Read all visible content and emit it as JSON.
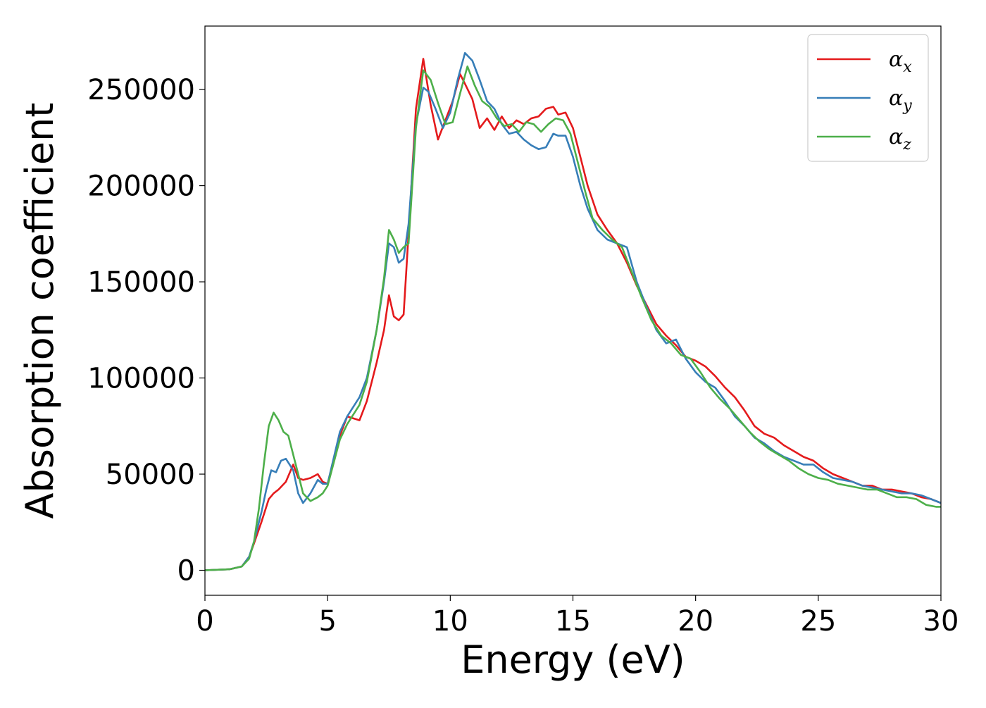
{
  "chart_data": {
    "type": "line",
    "xlabel": "Energy (eV)",
    "ylabel": "Absorption coefficient",
    "xlim": [
      0,
      30
    ],
    "ylim": [
      -13000,
      283000
    ],
    "xticks": [
      "0",
      "5",
      "10",
      "15",
      "20",
      "25",
      "30"
    ],
    "yticks": [
      "0",
      "50000",
      "100000",
      "150000",
      "200000",
      "250000"
    ],
    "grid": false,
    "legend_position": "top-right",
    "series": [
      {
        "name": "α",
        "subscript": "x",
        "color": "#e41a1c",
        "x": [
          0,
          1,
          1.5,
          1.8,
          2.0,
          2.3,
          2.6,
          2.8,
          3.0,
          3.3,
          3.6,
          3.8,
          4.0,
          4.3,
          4.6,
          4.8,
          5.0,
          5.5,
          5.8,
          6.3,
          6.6,
          7.0,
          7.3,
          7.5,
          7.7,
          7.9,
          8.1,
          8.3,
          8.6,
          8.9,
          9.2,
          9.5,
          9.8,
          10.1,
          10.4,
          10.6,
          10.9,
          11.2,
          11.5,
          11.8,
          12.1,
          12.4,
          12.7,
          13.0,
          13.3,
          13.6,
          13.9,
          14.2,
          14.4,
          14.7,
          15.0,
          15.3,
          15.6,
          16.0,
          16.4,
          16.8,
          17.2,
          17.6,
          18.0,
          18.4,
          18.8,
          19.2,
          19.6,
          20.0,
          20.4,
          20.8,
          21.2,
          21.6,
          22.0,
          22.4,
          22.8,
          23.2,
          23.6,
          24.0,
          24.4,
          24.8,
          25.2,
          25.6,
          26.0,
          26.4,
          26.8,
          27.2,
          27.6,
          28.0,
          28.4,
          28.8,
          29.2,
          29.6,
          30.0
        ],
        "y": [
          0,
          500,
          2000,
          7000,
          14000,
          25000,
          37000,
          40000,
          42000,
          46000,
          55000,
          48000,
          47000,
          48000,
          50000,
          46000,
          45000,
          70000,
          80000,
          78000,
          88000,
          108000,
          125000,
          143000,
          132000,
          130000,
          133000,
          175000,
          240000,
          266000,
          242000,
          224000,
          234000,
          244000,
          258000,
          253000,
          245000,
          230000,
          235000,
          229000,
          236000,
          230000,
          234000,
          232000,
          235000,
          236000,
          240000,
          241000,
          237000,
          238000,
          230000,
          215000,
          200000,
          185000,
          177000,
          170000,
          160000,
          148000,
          138000,
          128000,
          122000,
          117000,
          111000,
          109000,
          106000,
          101000,
          95000,
          90000,
          83000,
          75000,
          71000,
          69000,
          65000,
          62000,
          59000,
          57000,
          53000,
          50000,
          48000,
          46000,
          44000,
          44000,
          42000,
          42000,
          41000,
          40000,
          38000,
          37000,
          35000
        ]
      },
      {
        "name": "α",
        "subscript": "y",
        "color": "#377eb8",
        "x": [
          0,
          1,
          1.5,
          1.8,
          2.0,
          2.3,
          2.5,
          2.7,
          2.9,
          3.1,
          3.3,
          3.6,
          3.8,
          4.0,
          4.3,
          4.6,
          4.8,
          5.0,
          5.5,
          5.8,
          6.3,
          6.6,
          7.0,
          7.3,
          7.5,
          7.7,
          7.9,
          8.1,
          8.3,
          8.6,
          8.9,
          9.1,
          9.4,
          9.7,
          10.0,
          10.3,
          10.6,
          10.9,
          11.2,
          11.5,
          11.8,
          12.1,
          12.4,
          12.7,
          13.0,
          13.3,
          13.6,
          13.9,
          14.2,
          14.4,
          14.7,
          15.0,
          15.3,
          15.6,
          16.0,
          16.4,
          16.8,
          17.2,
          17.6,
          18.0,
          18.4,
          18.8,
          19.2,
          19.6,
          20.0,
          20.4,
          20.8,
          21.2,
          21.6,
          22.0,
          22.4,
          22.8,
          23.2,
          23.6,
          24.0,
          24.4,
          24.8,
          25.2,
          25.6,
          26.0,
          26.4,
          26.8,
          27.2,
          27.6,
          28.0,
          28.4,
          28.8,
          29.2,
          29.6,
          30.0
        ],
        "y": [
          0,
          500,
          2000,
          7000,
          15000,
          30000,
          42000,
          52000,
          51000,
          57000,
          58000,
          52000,
          40000,
          35000,
          40000,
          47000,
          45000,
          45000,
          72000,
          80000,
          90000,
          100000,
          125000,
          150000,
          170000,
          168000,
          160000,
          162000,
          180000,
          232000,
          251000,
          249000,
          240000,
          230000,
          238000,
          255000,
          269000,
          265000,
          255000,
          244000,
          240000,
          232000,
          227000,
          228000,
          224000,
          221000,
          219000,
          220000,
          227000,
          226000,
          226000,
          215000,
          200000,
          188000,
          177000,
          172000,
          170000,
          168000,
          150000,
          137000,
          125000,
          118000,
          120000,
          110000,
          103000,
          98000,
          95000,
          88000,
          80000,
          75000,
          69000,
          66000,
          62000,
          59000,
          57000,
          55000,
          55000,
          51000,
          48000,
          47000,
          46000,
          44000,
          43000,
          42000,
          41000,
          40000,
          40000,
          39000,
          37000,
          35000
        ]
      },
      {
        "name": "α",
        "subscript": "z",
        "color": "#4daf4a",
        "x": [
          0,
          1,
          1.5,
          1.8,
          2.0,
          2.2,
          2.4,
          2.6,
          2.8,
          3.0,
          3.2,
          3.4,
          3.6,
          3.8,
          4.0,
          4.3,
          4.6,
          4.8,
          5.0,
          5.5,
          5.8,
          6.3,
          6.6,
          7.0,
          7.3,
          7.5,
          7.7,
          7.9,
          8.1,
          8.3,
          8.6,
          8.9,
          9.2,
          9.5,
          9.8,
          10.1,
          10.4,
          10.7,
          11.0,
          11.3,
          11.6,
          11.9,
          12.2,
          12.5,
          12.8,
          13.1,
          13.4,
          13.7,
          14.0,
          14.3,
          14.6,
          14.9,
          15.2,
          15.5,
          15.8,
          16.2,
          16.6,
          17.0,
          17.4,
          17.8,
          18.2,
          18.6,
          19.0,
          19.4,
          19.8,
          20.2,
          20.6,
          21.0,
          21.4,
          21.8,
          22.2,
          22.6,
          23.0,
          23.4,
          23.8,
          24.2,
          24.6,
          25.0,
          25.4,
          25.8,
          26.2,
          26.6,
          27.0,
          27.4,
          27.8,
          28.2,
          28.6,
          29.0,
          29.4,
          29.8,
          30.0
        ],
        "y": [
          0,
          500,
          2000,
          6000,
          15000,
          32000,
          55000,
          75000,
          82000,
          78000,
          72000,
          70000,
          60000,
          50000,
          40000,
          36000,
          38000,
          40000,
          44000,
          68000,
          76000,
          86000,
          98000,
          125000,
          152000,
          177000,
          172000,
          165000,
          168000,
          170000,
          230000,
          260000,
          255000,
          243000,
          232000,
          233000,
          248000,
          262000,
          252000,
          244000,
          241000,
          235000,
          231000,
          232000,
          228000,
          233000,
          232000,
          228000,
          232000,
          235000,
          234000,
          227000,
          212000,
          197000,
          183000,
          177000,
          172000,
          168000,
          155000,
          142000,
          130000,
          122000,
          118000,
          112000,
          110000,
          103000,
          95000,
          89000,
          84000,
          78000,
          72000,
          67000,
          63000,
          60000,
          57000,
          53000,
          50000,
          48000,
          47000,
          45000,
          44000,
          43000,
          42000,
          42000,
          40000,
          38000,
          38000,
          37000,
          34000,
          33000,
          33000
        ]
      }
    ]
  }
}
